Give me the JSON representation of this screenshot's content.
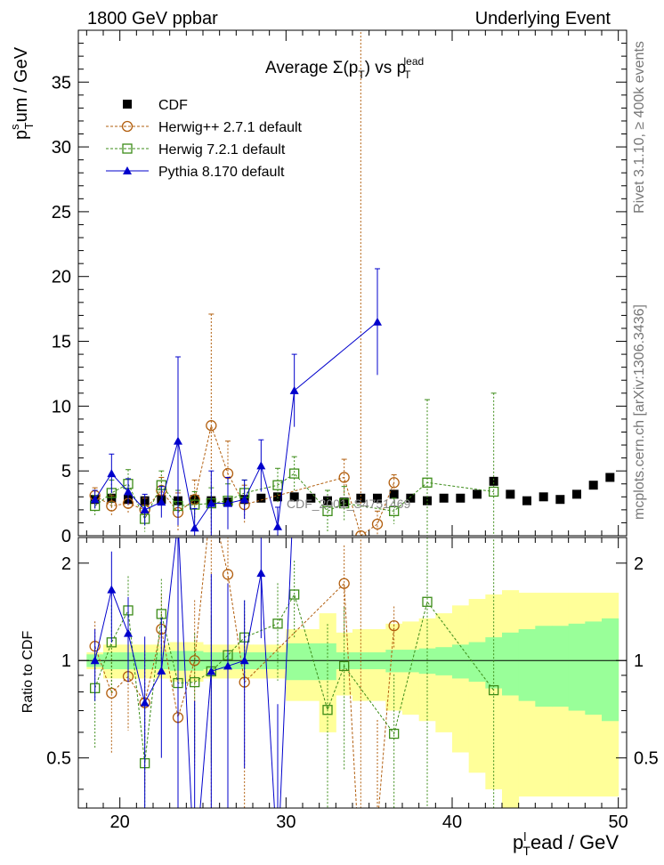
{
  "header": {
    "left": "1800 GeV ppbar",
    "right": "Underlying Event"
  },
  "side_labels": {
    "rivet": "Rivet 3.1.10, ≥ 400k events",
    "mcplots": "mcplots.cern.ch [arXiv:1306.3436]"
  },
  "chart_data": [
    {
      "type": "scatter",
      "title": "Average Σ(p_T) vs p_T^lead",
      "watermark": "CDF_2001_S4751469",
      "ylabel": "p_T^sum / GeV",
      "xlim": [
        17.5,
        50.5
      ],
      "ylim": [
        0,
        39
      ],
      "yticks": [
        0,
        5,
        10,
        15,
        20,
        25,
        30,
        35
      ],
      "legend_position": "top-left",
      "series": [
        {
          "name": "CDF",
          "style": "data",
          "color": "#000000",
          "x": [
            18.5,
            19.5,
            20.5,
            21.5,
            22.5,
            23.5,
            24.5,
            25.5,
            26.5,
            27.5,
            28.5,
            29.5,
            30.5,
            31.5,
            32.5,
            33.5,
            34.5,
            35.5,
            36.5,
            37.5,
            38.5,
            39.5,
            40.5,
            41.5,
            42.5,
            43.5,
            44.5,
            45.5,
            46.5,
            47.5,
            48.5,
            49.5
          ],
          "y": [
            2.8,
            2.9,
            2.8,
            2.7,
            2.8,
            2.7,
            2.8,
            2.7,
            2.6,
            2.8,
            2.9,
            3.0,
            3.0,
            2.9,
            2.7,
            2.6,
            2.9,
            2.9,
            3.2,
            2.9,
            2.7,
            2.9,
            2.9,
            3.2,
            4.2,
            3.2,
            2.7,
            3.0,
            2.8,
            3.2,
            3.9,
            4.5
          ]
        },
        {
          "name": "Herwig++ 2.7.1 default",
          "style": "circle",
          "color": "#b25f0f",
          "x": [
            18.5,
            19.5,
            20.5,
            21.5,
            22.5,
            23.5,
            24.5,
            25.5,
            26.5,
            27.5,
            33.5,
            34.5,
            35.5,
            36.5
          ],
          "y": [
            3.1,
            2.3,
            2.5,
            2.0,
            3.5,
            1.8,
            2.8,
            8.5,
            4.8,
            2.4,
            4.5,
            0,
            0.9,
            4.1
          ],
          "yerr": [
            0.6,
            0.8,
            0.8,
            0.9,
            1.0,
            1.5,
            1.5,
            8.6,
            2.5,
            1.5,
            1.4,
            60,
            1.0,
            0.6
          ]
        },
        {
          "name": "Herwig 7.2.1 default",
          "style": "square",
          "color": "#3c8c18",
          "x": [
            18.5,
            19.5,
            20.5,
            21.5,
            22.5,
            23.5,
            24.5,
            25.5,
            26.5,
            27.5,
            29.5,
            30.5,
            32.5,
            33.5,
            36.5,
            38.5,
            42.5
          ],
          "y": [
            2.3,
            3.3,
            4.0,
            1.3,
            3.9,
            2.3,
            2.4,
            2.5,
            2.7,
            3.3,
            3.9,
            4.8,
            1.9,
            2.5,
            1.9,
            4.1,
            3.4
          ],
          "yerr": [
            0.8,
            1.0,
            1.1,
            1.0,
            1.1,
            1.2,
            1.0,
            1.2,
            1.3,
            1.0,
            1.3,
            1.3,
            1.6,
            1.3,
            1.0,
            6.4,
            7.6
          ]
        },
        {
          "name": "Pythia 8.170 default",
          "style": "triangle",
          "color": "#0000cc",
          "x": [
            18.5,
            19.5,
            20.5,
            21.5,
            22.5,
            23.5,
            24.5,
            25.5,
            26.5,
            27.5,
            28.5,
            29.5,
            30.5,
            35.5
          ],
          "y": [
            2.8,
            4.8,
            3.4,
            2.0,
            2.6,
            7.3,
            0.6,
            2.5,
            2.5,
            2.8,
            5.4,
            0.7,
            11.2,
            16.5
          ],
          "yerr": [
            0.7,
            1.5,
            1.0,
            1.2,
            1.2,
            6.5,
            1.5,
            2.5,
            2.0,
            1.5,
            2.0,
            1.5,
            2.8,
            4.1
          ]
        }
      ]
    },
    {
      "type": "scatter",
      "ylabel": "Ratio to CDF",
      "xlabel": "p_T^lead / GeV",
      "xlim": [
        17.5,
        50.5
      ],
      "ylim": [
        0.35,
        2.4
      ],
      "yticks": [
        0.5,
        1,
        2
      ],
      "xticks": [
        20,
        30,
        40,
        50
      ],
      "reference_line": 1,
      "band_inner": [
        0.045,
        0.06,
        0.06,
        0.06,
        0.06,
        0.07,
        0.07,
        0.06,
        0.06,
        0.06,
        0.06,
        0.06,
        0.13,
        0.13,
        0.13,
        0.06,
        0.06,
        0.06,
        0.08,
        0.08,
        0.09,
        0.1,
        0.12,
        0.14,
        0.18,
        0.22,
        0.25,
        0.28,
        0.28,
        0.3,
        0.32,
        0.35
      ],
      "band_outer": [
        0.06,
        0.12,
        0.12,
        0.12,
        0.12,
        0.14,
        0.14,
        0.12,
        0.12,
        0.12,
        0.12,
        0.12,
        0.25,
        0.25,
        0.4,
        0.22,
        0.25,
        0.25,
        0.3,
        0.32,
        0.35,
        0.4,
        0.48,
        0.55,
        0.6,
        0.65,
        0.62,
        0.62,
        0.62,
        0.62,
        0.62,
        0.62
      ]
    }
  ]
}
